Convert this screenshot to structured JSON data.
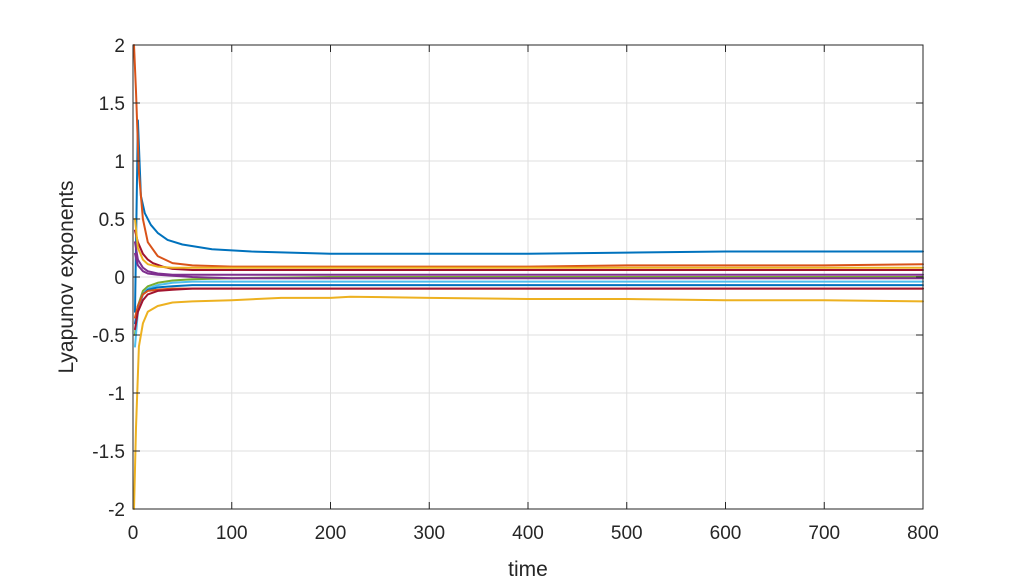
{
  "chart_data": {
    "type": "line",
    "title": "",
    "xlabel": "time",
    "ylabel": "Lyapunov exponents",
    "xlim": [
      0,
      800
    ],
    "ylim": [
      -2,
      2
    ],
    "xticks": [
      0,
      100,
      200,
      300,
      400,
      500,
      600,
      700,
      800
    ],
    "xtick_labels": [
      "0",
      "100",
      "200",
      "300",
      "400",
      "500",
      "600",
      "700",
      "800"
    ],
    "yticks": [
      -2,
      -1.5,
      -1,
      -0.5,
      0,
      0.5,
      1,
      1.5,
      2
    ],
    "ytick_labels": [
      "-2",
      "-1.5",
      "-1",
      "-0.5",
      "0",
      "0.5",
      "1",
      "1.5",
      "2"
    ],
    "grid": true,
    "legend": "none",
    "series": [
      {
        "color": "#0072BD",
        "x": [
          2,
          5,
          8,
          12,
          18,
          25,
          35,
          50,
          80,
          120,
          200,
          300,
          400,
          500,
          600,
          700,
          800
        ],
        "y": [
          -0.3,
          1.35,
          0.7,
          0.55,
          0.45,
          0.38,
          0.32,
          0.28,
          0.24,
          0.22,
          0.2,
          0.2,
          0.2,
          0.21,
          0.22,
          0.22,
          0.22
        ]
      },
      {
        "color": "#D95319",
        "x": [
          1,
          3,
          6,
          10,
          15,
          25,
          40,
          60,
          100,
          200,
          300,
          400,
          500,
          600,
          700,
          800
        ],
        "y": [
          2.0,
          1.6,
          0.9,
          0.5,
          0.3,
          0.18,
          0.12,
          0.1,
          0.09,
          0.09,
          0.09,
          0.09,
          0.1,
          0.1,
          0.1,
          0.11
        ]
      },
      {
        "color": "#EDB120",
        "x": [
          1,
          3,
          6,
          10,
          15,
          25,
          40,
          60,
          100,
          150,
          200,
          220,
          300,
          400,
          500,
          600,
          700,
          800
        ],
        "y": [
          -2.0,
          -1.3,
          -0.6,
          -0.4,
          -0.3,
          -0.25,
          -0.22,
          -0.21,
          -0.2,
          -0.18,
          -0.18,
          -0.17,
          -0.18,
          -0.19,
          -0.19,
          -0.2,
          -0.2,
          -0.21
        ]
      },
      {
        "color": "#7E2F8E",
        "x": [
          2,
          5,
          10,
          15,
          25,
          40,
          60,
          100,
          200,
          300,
          400,
          500,
          600,
          700,
          800
        ],
        "y": [
          0.3,
          0.15,
          0.08,
          0.05,
          0.03,
          0.02,
          0.02,
          0.02,
          0.02,
          0.02,
          0.02,
          0.02,
          0.02,
          0.02,
          0.02
        ]
      },
      {
        "color": "#77AC30",
        "x": [
          2,
          5,
          10,
          15,
          25,
          40,
          60,
          100,
          200,
          300,
          400,
          500,
          600,
          700,
          800
        ],
        "y": [
          -0.5,
          -0.25,
          -0.12,
          -0.08,
          -0.05,
          -0.03,
          -0.02,
          -0.01,
          0.0,
          0.0,
          0.0,
          0.0,
          0.0,
          0.0,
          0.0
        ]
      },
      {
        "color": "#4DBEEE",
        "x": [
          2,
          5,
          10,
          15,
          25,
          40,
          60,
          100,
          200,
          300,
          400,
          500,
          600,
          700,
          800
        ],
        "y": [
          -0.6,
          -0.3,
          -0.15,
          -0.1,
          -0.07,
          -0.05,
          -0.04,
          -0.04,
          -0.04,
          -0.04,
          -0.04,
          -0.04,
          -0.04,
          -0.04,
          -0.04
        ]
      },
      {
        "color": "#A2142F",
        "x": [
          2,
          5,
          10,
          15,
          20,
          30,
          40,
          60,
          100,
          200,
          300,
          400,
          500,
          600,
          700,
          800
        ],
        "y": [
          0.4,
          0.3,
          0.2,
          0.15,
          0.12,
          0.09,
          0.07,
          0.06,
          0.06,
          0.06,
          0.06,
          0.06,
          0.06,
          0.06,
          0.06,
          0.06
        ]
      },
      {
        "color": "#0072BD",
        "x": [
          2,
          5,
          10,
          15,
          25,
          40,
          60,
          100,
          200,
          300,
          400,
          500,
          600,
          700,
          800
        ],
        "y": [
          -0.4,
          -0.25,
          -0.15,
          -0.11,
          -0.09,
          -0.08,
          -0.07,
          -0.07,
          -0.07,
          -0.07,
          -0.07,
          -0.07,
          -0.07,
          -0.07,
          -0.07
        ]
      },
      {
        "color": "#D95319",
        "x": [
          2,
          5,
          10,
          15,
          25,
          40,
          60,
          100,
          200,
          300,
          400,
          500,
          600,
          700,
          800
        ],
        "y": [
          -0.35,
          -0.25,
          -0.15,
          -0.12,
          -0.11,
          -0.1,
          -0.1,
          -0.1,
          -0.1,
          -0.1,
          -0.1,
          -0.1,
          -0.1,
          -0.1,
          -0.1
        ]
      },
      {
        "color": "#7E2F8E",
        "x": [
          2,
          5,
          10,
          15,
          25,
          40,
          60,
          100,
          200,
          300,
          400,
          500,
          600,
          700,
          800
        ],
        "y": [
          0.2,
          0.1,
          0.05,
          0.03,
          0.02,
          0.01,
          0.0,
          -0.01,
          -0.01,
          -0.01,
          -0.01,
          -0.01,
          -0.01,
          -0.01,
          -0.01
        ]
      },
      {
        "color": "#EDB120",
        "x": [
          2,
          5,
          10,
          15,
          25,
          40,
          60,
          100,
          200,
          300,
          400,
          500,
          600,
          700,
          800
        ],
        "y": [
          0.5,
          0.25,
          0.15,
          0.11,
          0.09,
          0.08,
          0.08,
          0.08,
          0.08,
          0.08,
          0.08,
          0.08,
          0.08,
          0.08,
          0.08
        ]
      },
      {
        "color": "#A2142F",
        "x": [
          2,
          5,
          10,
          15,
          25,
          40,
          60,
          100,
          200,
          300,
          400,
          500,
          600,
          700,
          800
        ],
        "y": [
          -0.45,
          -0.3,
          -0.2,
          -0.15,
          -0.12,
          -0.11,
          -0.1,
          -0.1,
          -0.1,
          -0.1,
          -0.1,
          -0.1,
          -0.1,
          -0.1,
          -0.1
        ]
      }
    ]
  }
}
